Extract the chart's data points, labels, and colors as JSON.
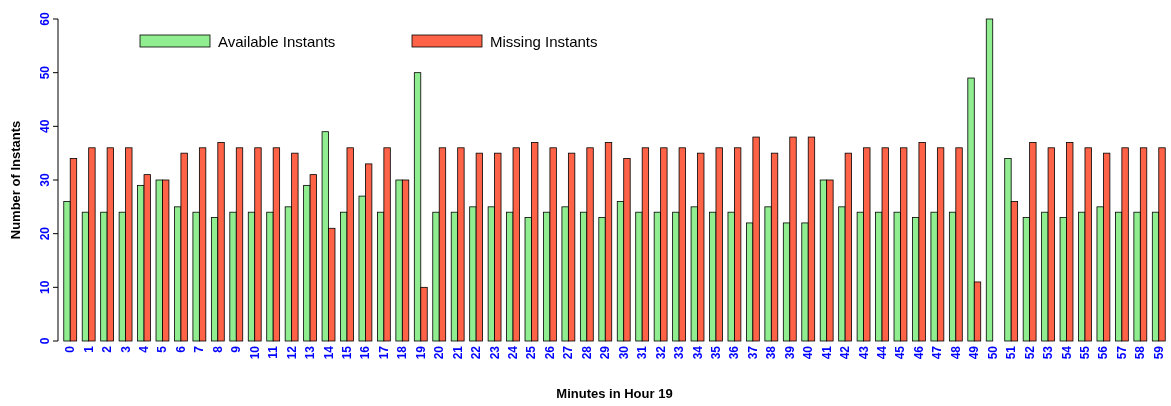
{
  "chart_data": {
    "type": "bar",
    "xlabel": "Minutes in Hour 19",
    "ylabel": "Number of Instants",
    "categories": [
      "0",
      "1",
      "2",
      "3",
      "4",
      "5",
      "6",
      "7",
      "8",
      "9",
      "10",
      "11",
      "12",
      "13",
      "14",
      "15",
      "16",
      "17",
      "18",
      "19",
      "20",
      "21",
      "22",
      "23",
      "24",
      "25",
      "26",
      "27",
      "28",
      "29",
      "30",
      "31",
      "32",
      "33",
      "34",
      "35",
      "36",
      "37",
      "38",
      "39",
      "40",
      "41",
      "42",
      "43",
      "44",
      "45",
      "46",
      "47",
      "48",
      "49",
      "50",
      "51",
      "52",
      "53",
      "54",
      "55",
      "56",
      "57",
      "58",
      "59"
    ],
    "series": [
      {
        "name": "Available Instants",
        "color": "#90ee90",
        "values": [
          26,
          24,
          24,
          24,
          29,
          30,
          25,
          24,
          23,
          24,
          24,
          24,
          25,
          29,
          39,
          24,
          27,
          24,
          30,
          50,
          24,
          24,
          25,
          25,
          24,
          23,
          24,
          25,
          24,
          23,
          26,
          24,
          24,
          24,
          25,
          24,
          24,
          22,
          25,
          22,
          22,
          30,
          25,
          24,
          24,
          24,
          23,
          24,
          24,
          49,
          60,
          34,
          23,
          24,
          23,
          24,
          25,
          24,
          24,
          24
        ]
      },
      {
        "name": "Missing Instants",
        "color": "#ff6347",
        "values": [
          34,
          36,
          36,
          36,
          31,
          30,
          35,
          36,
          37,
          36,
          36,
          36,
          35,
          31,
          21,
          36,
          33,
          36,
          30,
          10,
          36,
          36,
          35,
          35,
          36,
          37,
          36,
          35,
          36,
          37,
          34,
          36,
          36,
          36,
          35,
          36,
          36,
          38,
          35,
          38,
          38,
          30,
          35,
          36,
          36,
          36,
          37,
          36,
          36,
          11,
          0,
          26,
          37,
          36,
          37,
          36,
          35,
          36,
          36,
          36
        ]
      }
    ],
    "ylim": [
      0,
      60
    ],
    "yticks": [
      0,
      10,
      20,
      30,
      40,
      50,
      60
    ],
    "legend": "top left"
  }
}
